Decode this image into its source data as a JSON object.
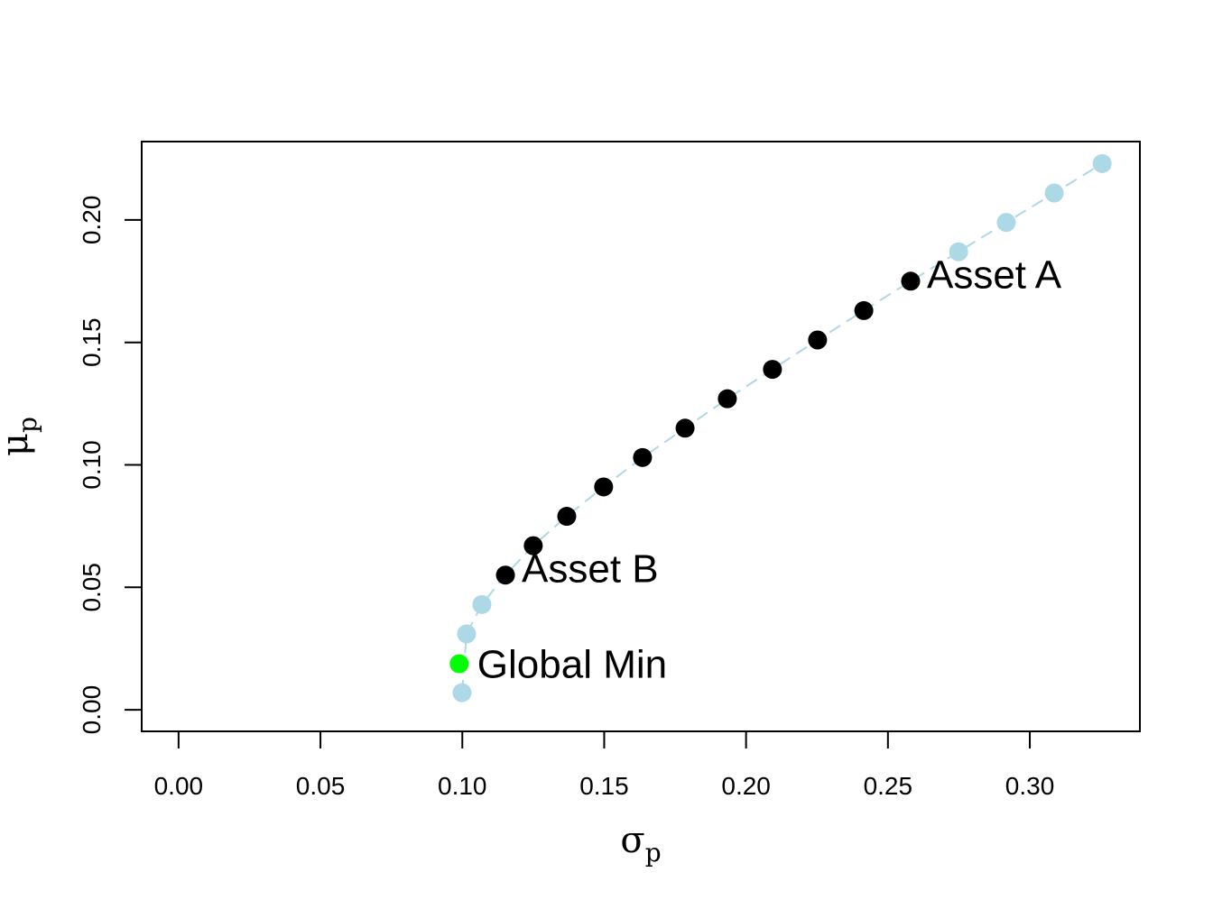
{
  "chart_data": {
    "type": "scatter",
    "xlabel": {
      "symbol": "σ",
      "subscript": "p"
    },
    "ylabel": {
      "symbol": "μ",
      "subscript": "p"
    },
    "xlim": [
      -0.013,
      0.3388
    ],
    "ylim": [
      -0.0088,
      0.232
    ],
    "xticks": [
      {
        "value": 0,
        "label": "0.00"
      },
      {
        "value": 0.05,
        "label": "0.05"
      },
      {
        "value": 0.1,
        "label": "0.10"
      },
      {
        "value": 0.15,
        "label": "0.15"
      },
      {
        "value": 0.2,
        "label": "0.20"
      },
      {
        "value": 0.25,
        "label": "0.25"
      },
      {
        "value": 0.3,
        "label": "0.30"
      }
    ],
    "yticks": [
      {
        "value": 0,
        "label": "0.00"
      },
      {
        "value": 0.05,
        "label": "0.05"
      },
      {
        "value": 0.1,
        "label": "0.10"
      },
      {
        "value": 0.15,
        "label": "0.15"
      },
      {
        "value": 0.2,
        "label": "0.20"
      }
    ],
    "line_color": "#add8e6",
    "points": {
      "x": [
        0.0999,
        0.1015,
        0.1069,
        0.1152,
        0.125,
        0.1368,
        0.1498,
        0.1635,
        0.1785,
        0.1934,
        0.2093,
        0.2252,
        0.2415,
        0.258,
        0.2749,
        0.2917,
        0.3086,
        0.3255
      ],
      "values": [
        0.007,
        0.031,
        0.043,
        0.055,
        0.067,
        0.079,
        0.091,
        0.103,
        0.115,
        0.127,
        0.139,
        0.151,
        0.163,
        0.175,
        0.187,
        0.199,
        0.211,
        0.223
      ],
      "colors": [
        "#add8e6",
        "#add8e6",
        "#add8e6",
        "#000000",
        "#000000",
        "#000000",
        "#000000",
        "#000000",
        "#000000",
        "#000000",
        "#000000",
        "#000000",
        "#000000",
        "#000000",
        "#add8e6",
        "#add8e6",
        "#add8e6",
        "#add8e6"
      ],
      "labels": [
        null,
        null,
        null,
        "Asset B",
        null,
        null,
        null,
        null,
        null,
        null,
        null,
        null,
        null,
        "Asset A",
        null,
        null,
        null,
        null
      ]
    },
    "global_min": {
      "x": 0.0989,
      "value": 0.0188,
      "color": "#00ff00",
      "label": "Global Min"
    }
  }
}
